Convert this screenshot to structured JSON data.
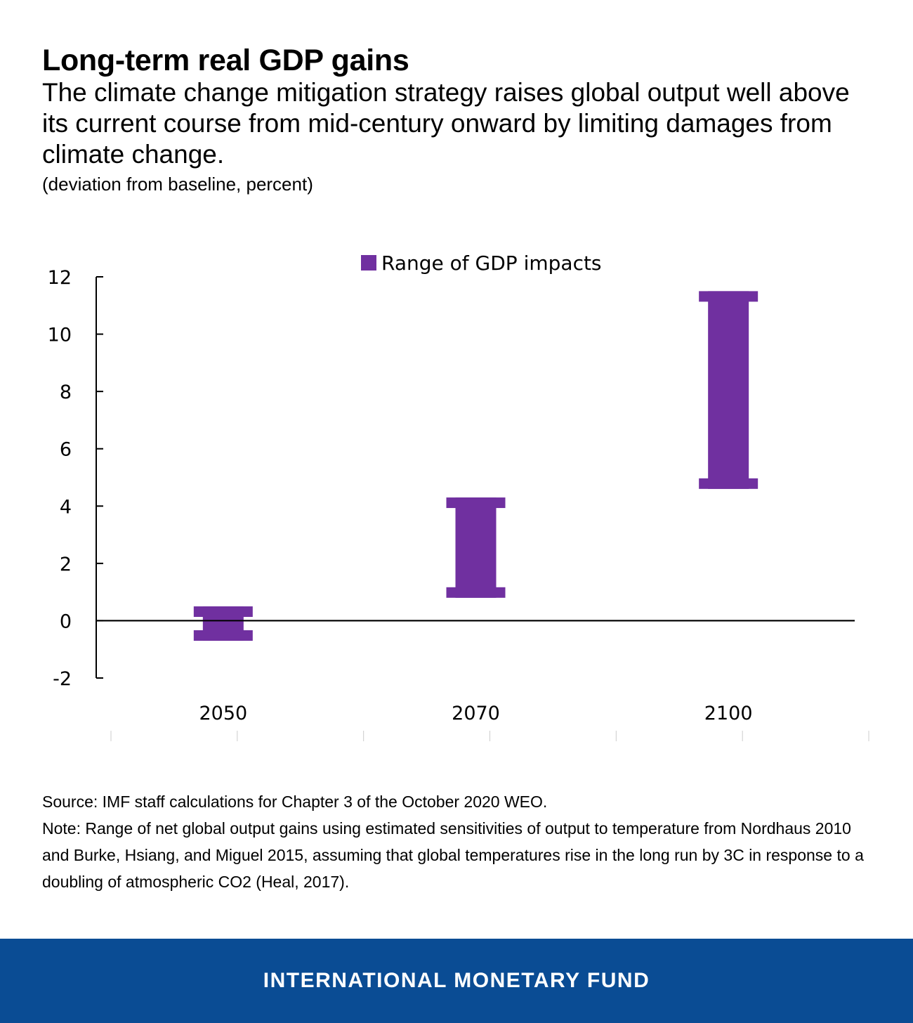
{
  "header": {
    "title": "Long-term real GDP gains",
    "subtitle": "The climate change mitigation strategy raises global output well above its current course from mid-century onward by limiting damages from climate change.",
    "unit": "(deviation from baseline, percent)"
  },
  "chart_data": {
    "type": "range-bar",
    "legend": [
      "Range of GDP impacts"
    ],
    "legend_position": "top-center",
    "categories": [
      "2050",
      "2070",
      "2100"
    ],
    "series": [
      {
        "name": "Range of GDP impacts",
        "low": [
          -0.7,
          0.8,
          4.6
        ],
        "high": [
          0.5,
          4.3,
          11.5
        ]
      }
    ],
    "yticks": [
      12,
      10,
      8,
      6,
      4,
      2,
      0,
      -2
    ],
    "ylim": [
      -2,
      12
    ],
    "xlabel": "",
    "ylabel": "",
    "grid": false,
    "color": "#7030a0"
  },
  "notes": {
    "source": "Source: IMF staff calculations for Chapter 3 of the October 2020 WEO.",
    "note": "Note: Range of net global output gains using estimated sensitivities of output to temperature from Nordhaus 2010 and Burke, Hsiang, and Miguel 2015, assuming that global temperatures rise in the long run by 3C in response to a doubling of atmospheric CO2 (Heal, 2017)."
  },
  "footer": {
    "label": "INTERNATIONAL MONETARY FUND",
    "color": "#0a4c94"
  }
}
